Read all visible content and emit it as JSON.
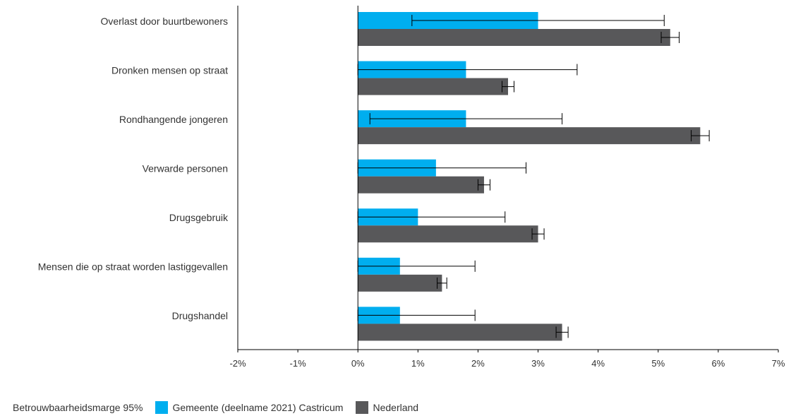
{
  "chart_data": {
    "type": "bar",
    "orientation": "horizontal",
    "categories": [
      "Overlast door buurtbewoners",
      "Dronken mensen op straat",
      "Rondhangende jongeren",
      "Verwarde personen",
      "Drugsgebruik",
      "Mensen die op straat worden lastiggevallen",
      "Drugshandel"
    ],
    "series": [
      {
        "name": "Gemeente (deelname 2021) Castricum",
        "color": "#00AEEF",
        "values": [
          3.0,
          1.8,
          1.8,
          1.3,
          1.0,
          0.7,
          0.7
        ],
        "error_low": [
          0.9,
          0.0,
          0.2,
          0.0,
          0.0,
          0.0,
          0.0
        ],
        "error_high": [
          5.1,
          3.65,
          3.4,
          2.8,
          2.45,
          1.95,
          1.95
        ]
      },
      {
        "name": "Nederland",
        "color": "#58585A",
        "values": [
          5.2,
          2.5,
          5.7,
          2.1,
          3.0,
          1.4,
          3.4
        ],
        "error_low": [
          5.05,
          2.4,
          5.55,
          2.0,
          2.9,
          1.32,
          3.3
        ],
        "error_high": [
          5.35,
          2.6,
          5.85,
          2.2,
          3.1,
          1.48,
          3.5
        ]
      }
    ],
    "xlim": [
      -2,
      7
    ],
    "x_ticks": [
      "-2%",
      "-1%",
      "0%",
      "1%",
      "2%",
      "3%",
      "4%",
      "5%",
      "6%",
      "7%"
    ],
    "legend_placement": "bottom-left",
    "grid": false
  },
  "legend": {
    "margin_label": "Betrouwbaarheidsmarge 95%",
    "series_1_label": "Gemeente (deelname 2021) Castricum",
    "series_2_label": "Nederland"
  }
}
